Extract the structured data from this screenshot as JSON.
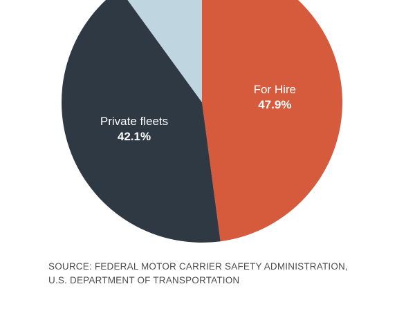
{
  "chart_data": {
    "type": "pie",
    "slices": [
      {
        "label": "For Hire",
        "value": 47.9,
        "value_label": "47.9%",
        "color": "#d65a3c"
      },
      {
        "label": "Private fleets",
        "value": 42.1,
        "value_label": "42.1%",
        "color": "#2e3944"
      },
      {
        "label": "",
        "value": 10.0,
        "value_label": "",
        "color": "#bfd5e0"
      }
    ],
    "start": "top",
    "direction": "clockwise",
    "legend": "none"
  },
  "source": {
    "line1": "SOURCE: FEDERAL MOTOR CARRIER SAFETY ADMINISTRATION,",
    "line2": "U.S. DEPARTMENT OF TRANSPORTATION"
  }
}
